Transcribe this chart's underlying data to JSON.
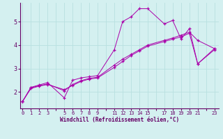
{
  "xlabel": "Windchill (Refroidissement éolien,°C)",
  "bg_color": "#d4f0f0",
  "line_color": "#aa00aa",
  "grid_color": "#b8e0e0",
  "xtick_labels": [
    "0",
    "1",
    "2",
    "3",
    "",
    "5",
    "6",
    "7",
    "8",
    "9",
    "",
    "11",
    "12",
    "13",
    "14",
    "15",
    "",
    "17",
    "18",
    "19",
    "20",
    "21",
    "",
    "23"
  ],
  "xtick_positions": [
    0,
    1,
    2,
    3,
    4,
    5,
    6,
    7,
    8,
    9,
    10,
    11,
    12,
    13,
    14,
    15,
    16,
    17,
    18,
    19,
    20,
    21,
    22,
    23
  ],
  "yticks": [
    2,
    3,
    4,
    5
  ],
  "xlim": [
    -0.3,
    23.5
  ],
  "ylim": [
    1.3,
    5.8
  ],
  "series1": [
    [
      0,
      1.6
    ],
    [
      1,
      2.2
    ],
    [
      2,
      2.3
    ],
    [
      3,
      2.4
    ],
    [
      5,
      1.75
    ],
    [
      6,
      2.5
    ],
    [
      7,
      2.6
    ],
    [
      8,
      2.65
    ],
    [
      9,
      2.7
    ],
    [
      11,
      3.8
    ],
    [
      12,
      5.0
    ],
    [
      13,
      5.2
    ],
    [
      14,
      5.55
    ],
    [
      15,
      5.55
    ],
    [
      17,
      4.9
    ],
    [
      18,
      5.05
    ],
    [
      19,
      4.25
    ],
    [
      20,
      4.7
    ],
    [
      21,
      3.2
    ],
    [
      23,
      3.8
    ]
  ],
  "series2": [
    [
      0,
      1.6
    ],
    [
      1,
      2.15
    ],
    [
      2,
      2.25
    ],
    [
      3,
      2.32
    ],
    [
      5,
      2.1
    ],
    [
      6,
      2.28
    ],
    [
      7,
      2.45
    ],
    [
      8,
      2.55
    ],
    [
      9,
      2.6
    ],
    [
      11,
      3.05
    ],
    [
      12,
      3.3
    ],
    [
      13,
      3.55
    ],
    [
      14,
      3.75
    ],
    [
      15,
      3.95
    ],
    [
      17,
      4.15
    ],
    [
      18,
      4.25
    ],
    [
      19,
      4.35
    ],
    [
      20,
      4.5
    ],
    [
      21,
      3.2
    ],
    [
      23,
      3.85
    ]
  ],
  "series3": [
    [
      0,
      1.6
    ],
    [
      1,
      2.18
    ],
    [
      2,
      2.27
    ],
    [
      3,
      2.34
    ],
    [
      5,
      2.05
    ],
    [
      6,
      2.32
    ],
    [
      7,
      2.48
    ],
    [
      8,
      2.58
    ],
    [
      9,
      2.63
    ],
    [
      11,
      3.15
    ],
    [
      12,
      3.4
    ],
    [
      13,
      3.6
    ],
    [
      14,
      3.8
    ],
    [
      15,
      4.0
    ],
    [
      17,
      4.2
    ],
    [
      18,
      4.3
    ],
    [
      19,
      4.42
    ],
    [
      20,
      4.55
    ],
    [
      21,
      4.2
    ],
    [
      23,
      3.85
    ]
  ]
}
